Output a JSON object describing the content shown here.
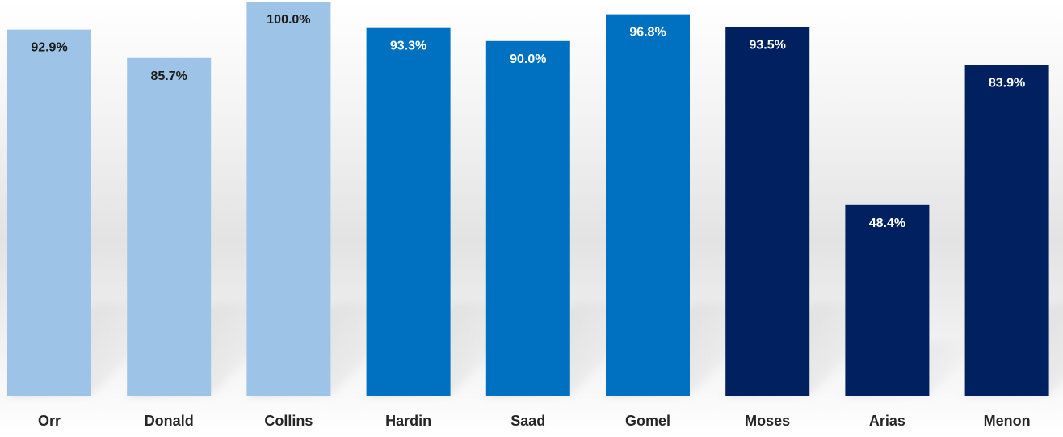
{
  "chart_data": {
    "type": "bar",
    "categories": [
      "Orr",
      "Donald",
      "Collins",
      "Hardin",
      "Saad",
      "Gomel",
      "Moses",
      "Arias",
      "Menon"
    ],
    "values": [
      92.9,
      85.7,
      100.0,
      93.3,
      90.0,
      96.8,
      93.5,
      48.4,
      83.9
    ],
    "value_labels": [
      "92.9%",
      "85.7%",
      "100.0%",
      "93.3%",
      "90.0%",
      "96.8%",
      "93.5%",
      "48.4%",
      "83.9%"
    ],
    "bar_colors": [
      "#9dc3e6",
      "#9dc3e6",
      "#9dc3e6",
      "#0070c0",
      "#0070c0",
      "#0070c0",
      "#002060",
      "#002060",
      "#002060"
    ],
    "label_colors": [
      "#1a1a1a",
      "#1a1a1a",
      "#1a1a1a",
      "#ffffff",
      "#ffffff",
      "#ffffff",
      "#ffffff",
      "#ffffff",
      "#ffffff"
    ],
    "title": "",
    "xlabel": "",
    "ylabel": "",
    "ylim": [
      0,
      100
    ],
    "grid": false,
    "legend": "none"
  }
}
